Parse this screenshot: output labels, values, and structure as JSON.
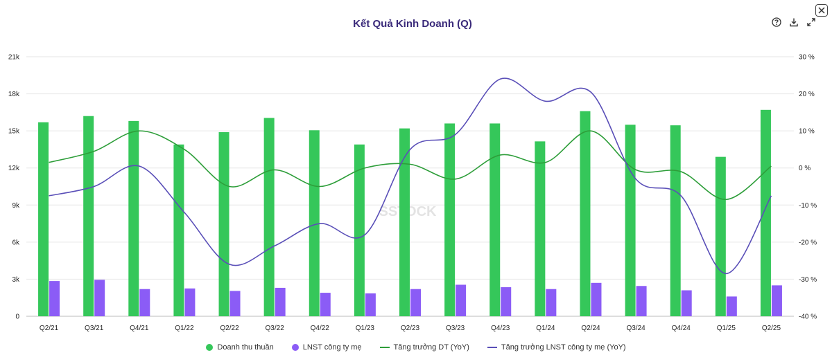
{
  "title": "Kết Quả Kinh Doanh (Q)",
  "watermark": "SSTOCK",
  "colors": {
    "revenue": "#35c75a",
    "profit": "#8b5cf6",
    "revenue_growth": "#2e9e3a",
    "profit_growth": "#5a4fb8",
    "grid": "#e6e6e6",
    "title": "#3a2a7a"
  },
  "toolbar": {
    "help_icon": "help-circle-icon",
    "download_icon": "download-icon",
    "expand_icon": "expand-icon",
    "close_icon": "close-icon"
  },
  "legend": [
    {
      "label": "Doanh thu thuần",
      "type": "dot",
      "color": "#35c75a"
    },
    {
      "label": "LNST công ty mẹ",
      "type": "dot",
      "color": "#8b5cf6"
    },
    {
      "label": "Tăng trưởng DT (YoY)",
      "type": "line",
      "color": "#2e9e3a"
    },
    {
      "label": "Tăng trưởng LNST công ty mẹ (YoY)",
      "type": "line",
      "color": "#5a4fb8"
    }
  ],
  "chart_data": {
    "type": "bar",
    "categories": [
      "Q2/21",
      "Q3/21",
      "Q4/21",
      "Q1/22",
      "Q2/22",
      "Q3/22",
      "Q4/22",
      "Q1/23",
      "Q2/23",
      "Q3/23",
      "Q4/23",
      "Q1/24",
      "Q2/24",
      "Q3/24",
      "Q4/24",
      "Q1/25",
      "Q2/25"
    ],
    "series": [
      {
        "name": "Doanh thu thuần",
        "type": "bar",
        "axis": "left",
        "values": [
          15700,
          16200,
          15800,
          13900,
          14900,
          16050,
          15050,
          13900,
          15200,
          15600,
          15600,
          14150,
          16600,
          15500,
          15450,
          12900,
          16700
        ]
      },
      {
        "name": "LNST công ty mẹ",
        "type": "bar",
        "axis": "left",
        "values": [
          2850,
          2950,
          2200,
          2250,
          2050,
          2300,
          1900,
          1850,
          2200,
          2550,
          2350,
          2200,
          2700,
          2450,
          2100,
          1600,
          2500
        ]
      },
      {
        "name": "Tăng trưởng DT (YoY)",
        "type": "line",
        "axis": "right",
        "values": [
          1.5,
          4.5,
          10,
          5,
          -5,
          -0.5,
          -5,
          0,
          1,
          -3,
          3.5,
          1.5,
          10,
          -0.5,
          -1,
          -8.5,
          0.5
        ]
      },
      {
        "name": "Tăng trưởng LNST công ty mẹ (YoY)",
        "type": "line",
        "axis": "right",
        "values": [
          -7.5,
          -5,
          0.5,
          -12,
          -26,
          -21,
          -15,
          -18,
          5,
          9,
          24,
          18,
          20.5,
          -3,
          -7.5,
          -28.5,
          -7.5
        ]
      }
    ],
    "y_left": {
      "min": 0,
      "max": 21000,
      "ticks": [
        "0",
        "3k",
        "6k",
        "9k",
        "12k",
        "15k",
        "18k",
        "21k"
      ]
    },
    "y_right": {
      "min": -40,
      "max": 30,
      "ticks": [
        "-40 %",
        "-30 %",
        "-20 %",
        "-10 %",
        "0 %",
        "10 %",
        "20 %",
        "30 %"
      ]
    },
    "grid": true,
    "legend_position": "bottom"
  }
}
